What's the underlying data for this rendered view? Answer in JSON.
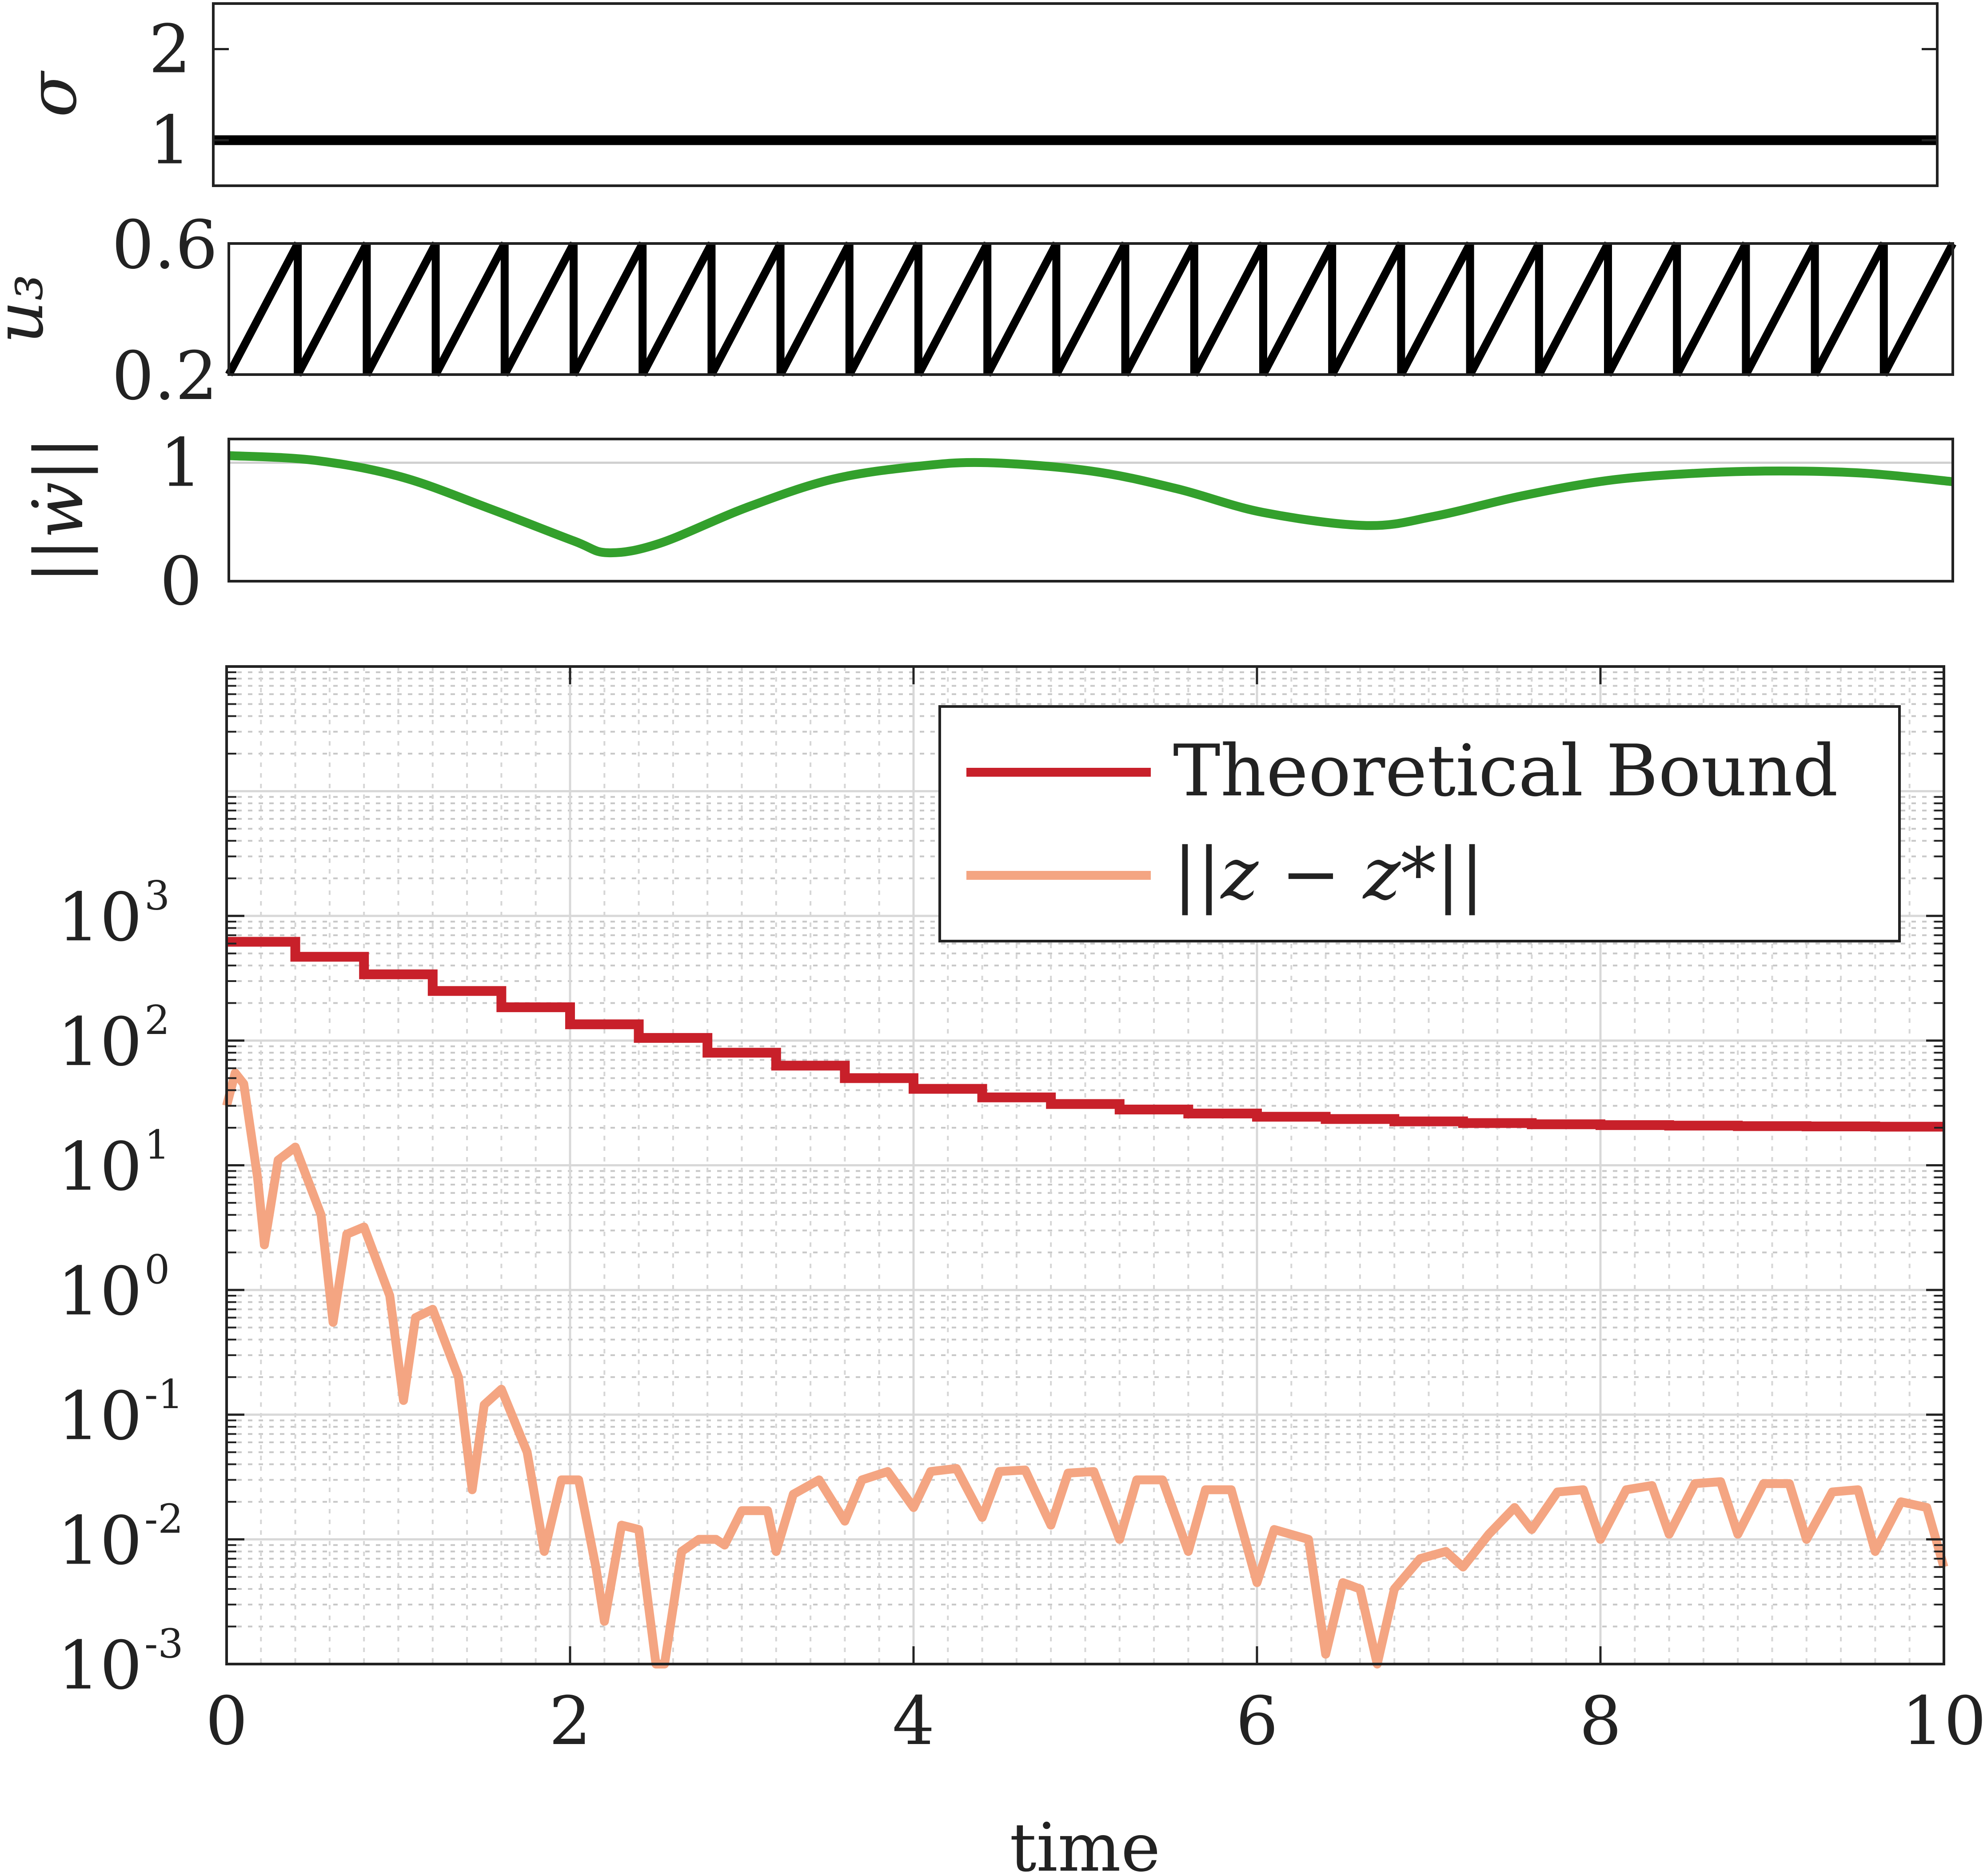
{
  "chart_data": [
    {
      "type": "line",
      "panel": "sigma",
      "ylabel": "σ",
      "ylim": [
        0.5,
        2.5
      ],
      "yticks": [
        "1",
        "2"
      ],
      "ytick_values": [
        1,
        2
      ],
      "xlim": [
        0,
        10
      ],
      "color": "#000000",
      "series": [
        {
          "name": "σ",
          "x": [
            0,
            10
          ],
          "y": [
            1,
            1
          ]
        }
      ]
    },
    {
      "type": "line",
      "panel": "u3",
      "ylabel": "u₃",
      "ylim": [
        0.2,
        0.6
      ],
      "yticks": [
        "0.2",
        "0.6"
      ],
      "ytick_values": [
        0.2,
        0.6
      ],
      "xlim": [
        0,
        10
      ],
      "color": "#000000",
      "sawtooth": {
        "period": 0.4,
        "low": 0.2,
        "high": 0.6
      }
    },
    {
      "type": "line",
      "panel": "wdot",
      "ylabel": "||ẇ||",
      "ylim": [
        0,
        1.2
      ],
      "yticks": [
        "0",
        "1"
      ],
      "ytick_values": [
        0,
        1
      ],
      "xlim": [
        0,
        10
      ],
      "color": "#33a02c",
      "series": [
        {
          "name": "||ẇ||",
          "x": [
            0,
            0.5,
            1.0,
            1.5,
            2.0,
            2.2,
            2.5,
            3.0,
            3.5,
            4.0,
            4.4,
            5.0,
            5.5,
            6.0,
            6.6,
            7.0,
            7.5,
            8.0,
            8.5,
            9.0,
            9.5,
            10.0
          ],
          "y": [
            1.06,
            1.02,
            0.88,
            0.62,
            0.34,
            0.24,
            0.32,
            0.62,
            0.86,
            0.97,
            1.0,
            0.93,
            0.78,
            0.58,
            0.47,
            0.55,
            0.72,
            0.85,
            0.91,
            0.93,
            0.91,
            0.84
          ]
        }
      ]
    },
    {
      "type": "line",
      "panel": "main",
      "yscale": "log",
      "xlabel": "time",
      "ylabel": "",
      "xlim": [
        0,
        10
      ],
      "ylim": [
        0.001,
        100000
      ],
      "xticks": [
        "0",
        "2",
        "4",
        "6",
        "8",
        "10"
      ],
      "xtick_values": [
        0,
        2,
        4,
        6,
        8,
        10
      ],
      "yticks": [
        {
          "base": "10",
          "exp": "-3",
          "value": 0.001
        },
        {
          "base": "10",
          "exp": "-2",
          "value": 0.01
        },
        {
          "base": "10",
          "exp": "-1",
          "value": 0.1
        },
        {
          "base": "10",
          "exp": "0",
          "value": 1
        },
        {
          "base": "10",
          "exp": "1",
          "value": 10
        },
        {
          "base": "10",
          "exp": "2",
          "value": 100
        },
        {
          "base": "10",
          "exp": "3",
          "value": 1000
        }
      ],
      "grid": true,
      "legend_position": "top-right",
      "series": [
        {
          "name": "Theoretical Bound",
          "color": "#c8202a",
          "step_times": [
            0,
            0.4,
            0.8,
            1.2,
            1.6,
            2.0,
            2.4,
            2.8,
            3.2,
            3.6,
            4.0,
            4.4,
            4.8,
            5.2,
            5.6,
            6.0,
            6.4,
            6.8,
            7.2,
            7.6,
            8.0,
            8.4,
            8.8,
            9.2,
            9.6,
            10.0
          ],
          "step_values": [
            620,
            470,
            340,
            250,
            185,
            135,
            105,
            80,
            63,
            50,
            41,
            35,
            31,
            28,
            26,
            24.5,
            23.5,
            22.5,
            21.8,
            21.3,
            21.0,
            20.8,
            20.6,
            20.5,
            20.4,
            20.4
          ]
        },
        {
          "name": "||z − z*||",
          "color": "#f4a582",
          "x": [
            0,
            0.05,
            0.1,
            0.18,
            0.22,
            0.3,
            0.4,
            0.55,
            0.62,
            0.7,
            0.8,
            0.95,
            1.03,
            1.1,
            1.2,
            1.35,
            1.43,
            1.5,
            1.6,
            1.75,
            1.85,
            1.95,
            2.05,
            2.15,
            2.2,
            2.3,
            2.4,
            2.5,
            2.55,
            2.65,
            2.75,
            2.85,
            2.9,
            3.0,
            3.15,
            3.2,
            3.3,
            3.45,
            3.6,
            3.7,
            3.85,
            4.0,
            4.1,
            4.25,
            4.4,
            4.5,
            4.65,
            4.8,
            4.9,
            5.05,
            5.2,
            5.3,
            5.45,
            5.6,
            5.7,
            5.85,
            6.0,
            6.1,
            6.3,
            6.4,
            6.5,
            6.6,
            6.7,
            6.8,
            6.95,
            7.1,
            7.2,
            7.35,
            7.5,
            7.6,
            7.75,
            7.9,
            8.0,
            8.15,
            8.3,
            8.4,
            8.55,
            8.7,
            8.8,
            8.95,
            9.1,
            9.2,
            9.35,
            9.5,
            9.6,
            9.75,
            9.9,
            10.0
          ],
          "y": [
            30,
            55,
            45,
            8,
            2.3,
            11,
            14,
            4,
            0.55,
            2.8,
            3.2,
            0.9,
            0.13,
            0.6,
            0.7,
            0.2,
            0.025,
            0.12,
            0.16,
            0.05,
            0.008,
            0.03,
            0.03,
            0.006,
            0.0022,
            0.013,
            0.012,
            0.001,
            0.001,
            0.008,
            0.01,
            0.01,
            0.009,
            0.017,
            0.017,
            0.008,
            0.023,
            0.03,
            0.014,
            0.03,
            0.035,
            0.018,
            0.035,
            0.037,
            0.015,
            0.035,
            0.036,
            0.013,
            0.034,
            0.035,
            0.01,
            0.03,
            0.03,
            0.008,
            0.025,
            0.025,
            0.0045,
            0.012,
            0.01,
            0.0012,
            0.0045,
            0.004,
            0.001,
            0.004,
            0.007,
            0.008,
            0.006,
            0.011,
            0.018,
            0.012,
            0.024,
            0.025,
            0.01,
            0.025,
            0.027,
            0.011,
            0.028,
            0.029,
            0.011,
            0.028,
            0.028,
            0.01,
            0.024,
            0.025,
            0.008,
            0.02,
            0.018,
            0.006
          ]
        }
      ]
    }
  ]
}
